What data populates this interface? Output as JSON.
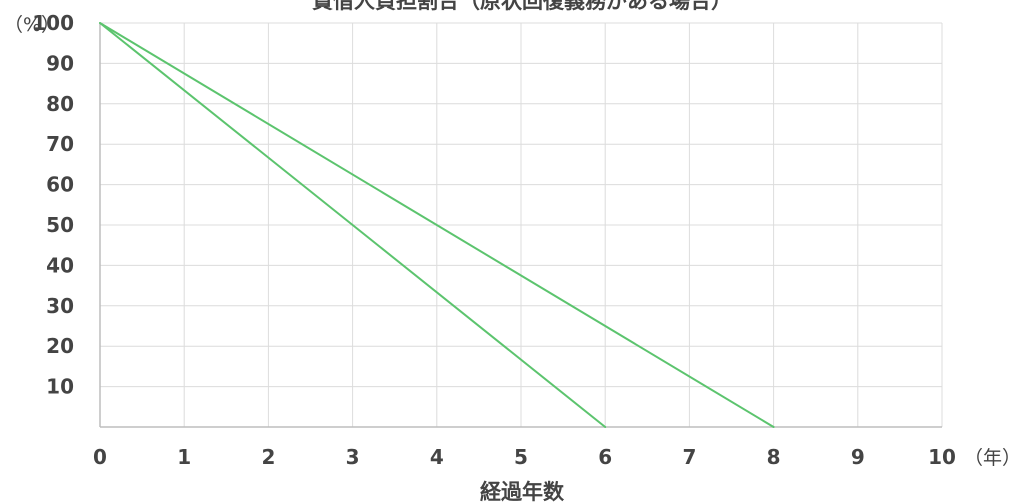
{
  "chart_data": {
    "type": "line",
    "title": "賃借人負担割合（原状回復義務がある場合）",
    "xlabel": "経過年数",
    "x_unit": "（年）",
    "y_unit": "（%）",
    "x_ticks": [
      "0",
      "1",
      "2",
      "3",
      "4",
      "5",
      "6",
      "7",
      "8",
      "9",
      "10"
    ],
    "y_ticks": [
      "10",
      "20",
      "30",
      "40",
      "50",
      "60",
      "70",
      "80",
      "90",
      "100"
    ],
    "xlim": [
      0,
      10
    ],
    "ylim": [
      0,
      100
    ],
    "grid": true,
    "series": [
      {
        "x": [
          0,
          6
        ],
        "y": [
          100,
          0
        ],
        "color": "#5cc46e"
      },
      {
        "x": [
          0,
          8
        ],
        "y": [
          100,
          0
        ],
        "color": "#5cc46e"
      }
    ]
  },
  "colors": {
    "grid": "#dcdcdc",
    "axis": "#bdbdbd",
    "text": "#444444",
    "line": "#5cc46e"
  }
}
